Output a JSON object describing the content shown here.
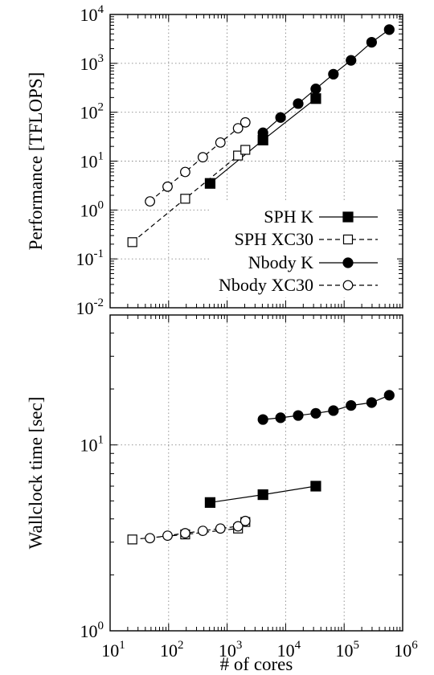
{
  "chart_data": [
    {
      "type": "line",
      "ylabel": "Performance [TFLOPS]",
      "xlabel": "",
      "xscale": "log",
      "yscale": "log",
      "xlim": [
        10,
        1000000
      ],
      "ylim": [
        0.01,
        10000
      ],
      "grid": true,
      "legend_position": "bottom-right",
      "x_ticks": [
        {
          "base": "10",
          "exp": "1"
        },
        {
          "base": "10",
          "exp": "2"
        },
        {
          "base": "10",
          "exp": "3"
        },
        {
          "base": "10",
          "exp": "4"
        },
        {
          "base": "10",
          "exp": "5"
        },
        {
          "base": "10",
          "exp": "6"
        }
      ],
      "y_ticks": [
        {
          "base": "10",
          "exp": "-2",
          "value": 0.01
        },
        {
          "base": "10",
          "exp": "-1",
          "value": 0.1
        },
        {
          "base": "10",
          "exp": "0",
          "value": 1
        },
        {
          "base": "10",
          "exp": "1",
          "value": 10
        },
        {
          "base": "10",
          "exp": "2",
          "value": 100
        },
        {
          "base": "10",
          "exp": "3",
          "value": 1000
        },
        {
          "base": "10",
          "exp": "4",
          "value": 10000
        }
      ],
      "series": [
        {
          "name": "SPH K",
          "marker": "square-filled",
          "line": "solid",
          "x": [
            512,
            4096,
            32768
          ],
          "y": [
            3.5,
            27,
            190
          ]
        },
        {
          "name": "SPH XC30",
          "marker": "square-open",
          "line": "dashed",
          "x": [
            24,
            192,
            1536,
            2048
          ],
          "y": [
            0.22,
            1.7,
            13,
            17
          ]
        },
        {
          "name": "Nbody K",
          "marker": "circle-filled",
          "line": "solid",
          "x": [
            4096,
            8192,
            16384,
            32768,
            65536,
            131072,
            294912,
            589824
          ],
          "y": [
            38,
            78,
            150,
            300,
            600,
            1150,
            2700,
            4900
          ]
        },
        {
          "name": "Nbody XC30",
          "marker": "circle-open",
          "line": "dashed",
          "x": [
            48,
            96,
            192,
            384,
            768,
            1536,
            2048
          ],
          "y": [
            1.5,
            3,
            6,
            12,
            24,
            47,
            62
          ]
        }
      ]
    },
    {
      "type": "line",
      "ylabel": "Wallclock time [sec]",
      "xlabel": "# of cores",
      "xscale": "log",
      "yscale": "log",
      "xlim": [
        10,
        1000000
      ],
      "ylim": [
        1,
        50
      ],
      "grid": true,
      "x_ticks": [
        {
          "base": "10",
          "exp": "1"
        },
        {
          "base": "10",
          "exp": "2"
        },
        {
          "base": "10",
          "exp": "3"
        },
        {
          "base": "10",
          "exp": "4"
        },
        {
          "base": "10",
          "exp": "5"
        },
        {
          "base": "10",
          "exp": "6"
        }
      ],
      "y_ticks": [
        {
          "base": "10",
          "exp": "0",
          "value": 1
        },
        {
          "base": "10",
          "exp": "1",
          "value": 10
        }
      ],
      "series": [
        {
          "name": "SPH K",
          "marker": "square-filled",
          "line": "solid",
          "x": [
            512,
            4096,
            32768
          ],
          "y": [
            4.9,
            5.4,
            6.0
          ]
        },
        {
          "name": "SPH XC30",
          "marker": "square-open",
          "line": "dashed",
          "x": [
            24,
            192,
            1536,
            2048
          ],
          "y": [
            3.1,
            3.3,
            3.55,
            3.85
          ]
        },
        {
          "name": "Nbody K",
          "marker": "circle-filled",
          "line": "solid",
          "x": [
            4096,
            8192,
            16384,
            32768,
            65536,
            131072,
            294912,
            589824
          ],
          "y": [
            13.7,
            14.0,
            14.4,
            14.8,
            15.3,
            16.3,
            16.9,
            18.5
          ]
        },
        {
          "name": "Nbody XC30",
          "marker": "circle-open",
          "line": "dashed",
          "x": [
            48,
            96,
            192,
            384,
            768,
            1536,
            2048
          ],
          "y": [
            3.15,
            3.25,
            3.35,
            3.45,
            3.55,
            3.65,
            3.9
          ]
        }
      ]
    }
  ]
}
